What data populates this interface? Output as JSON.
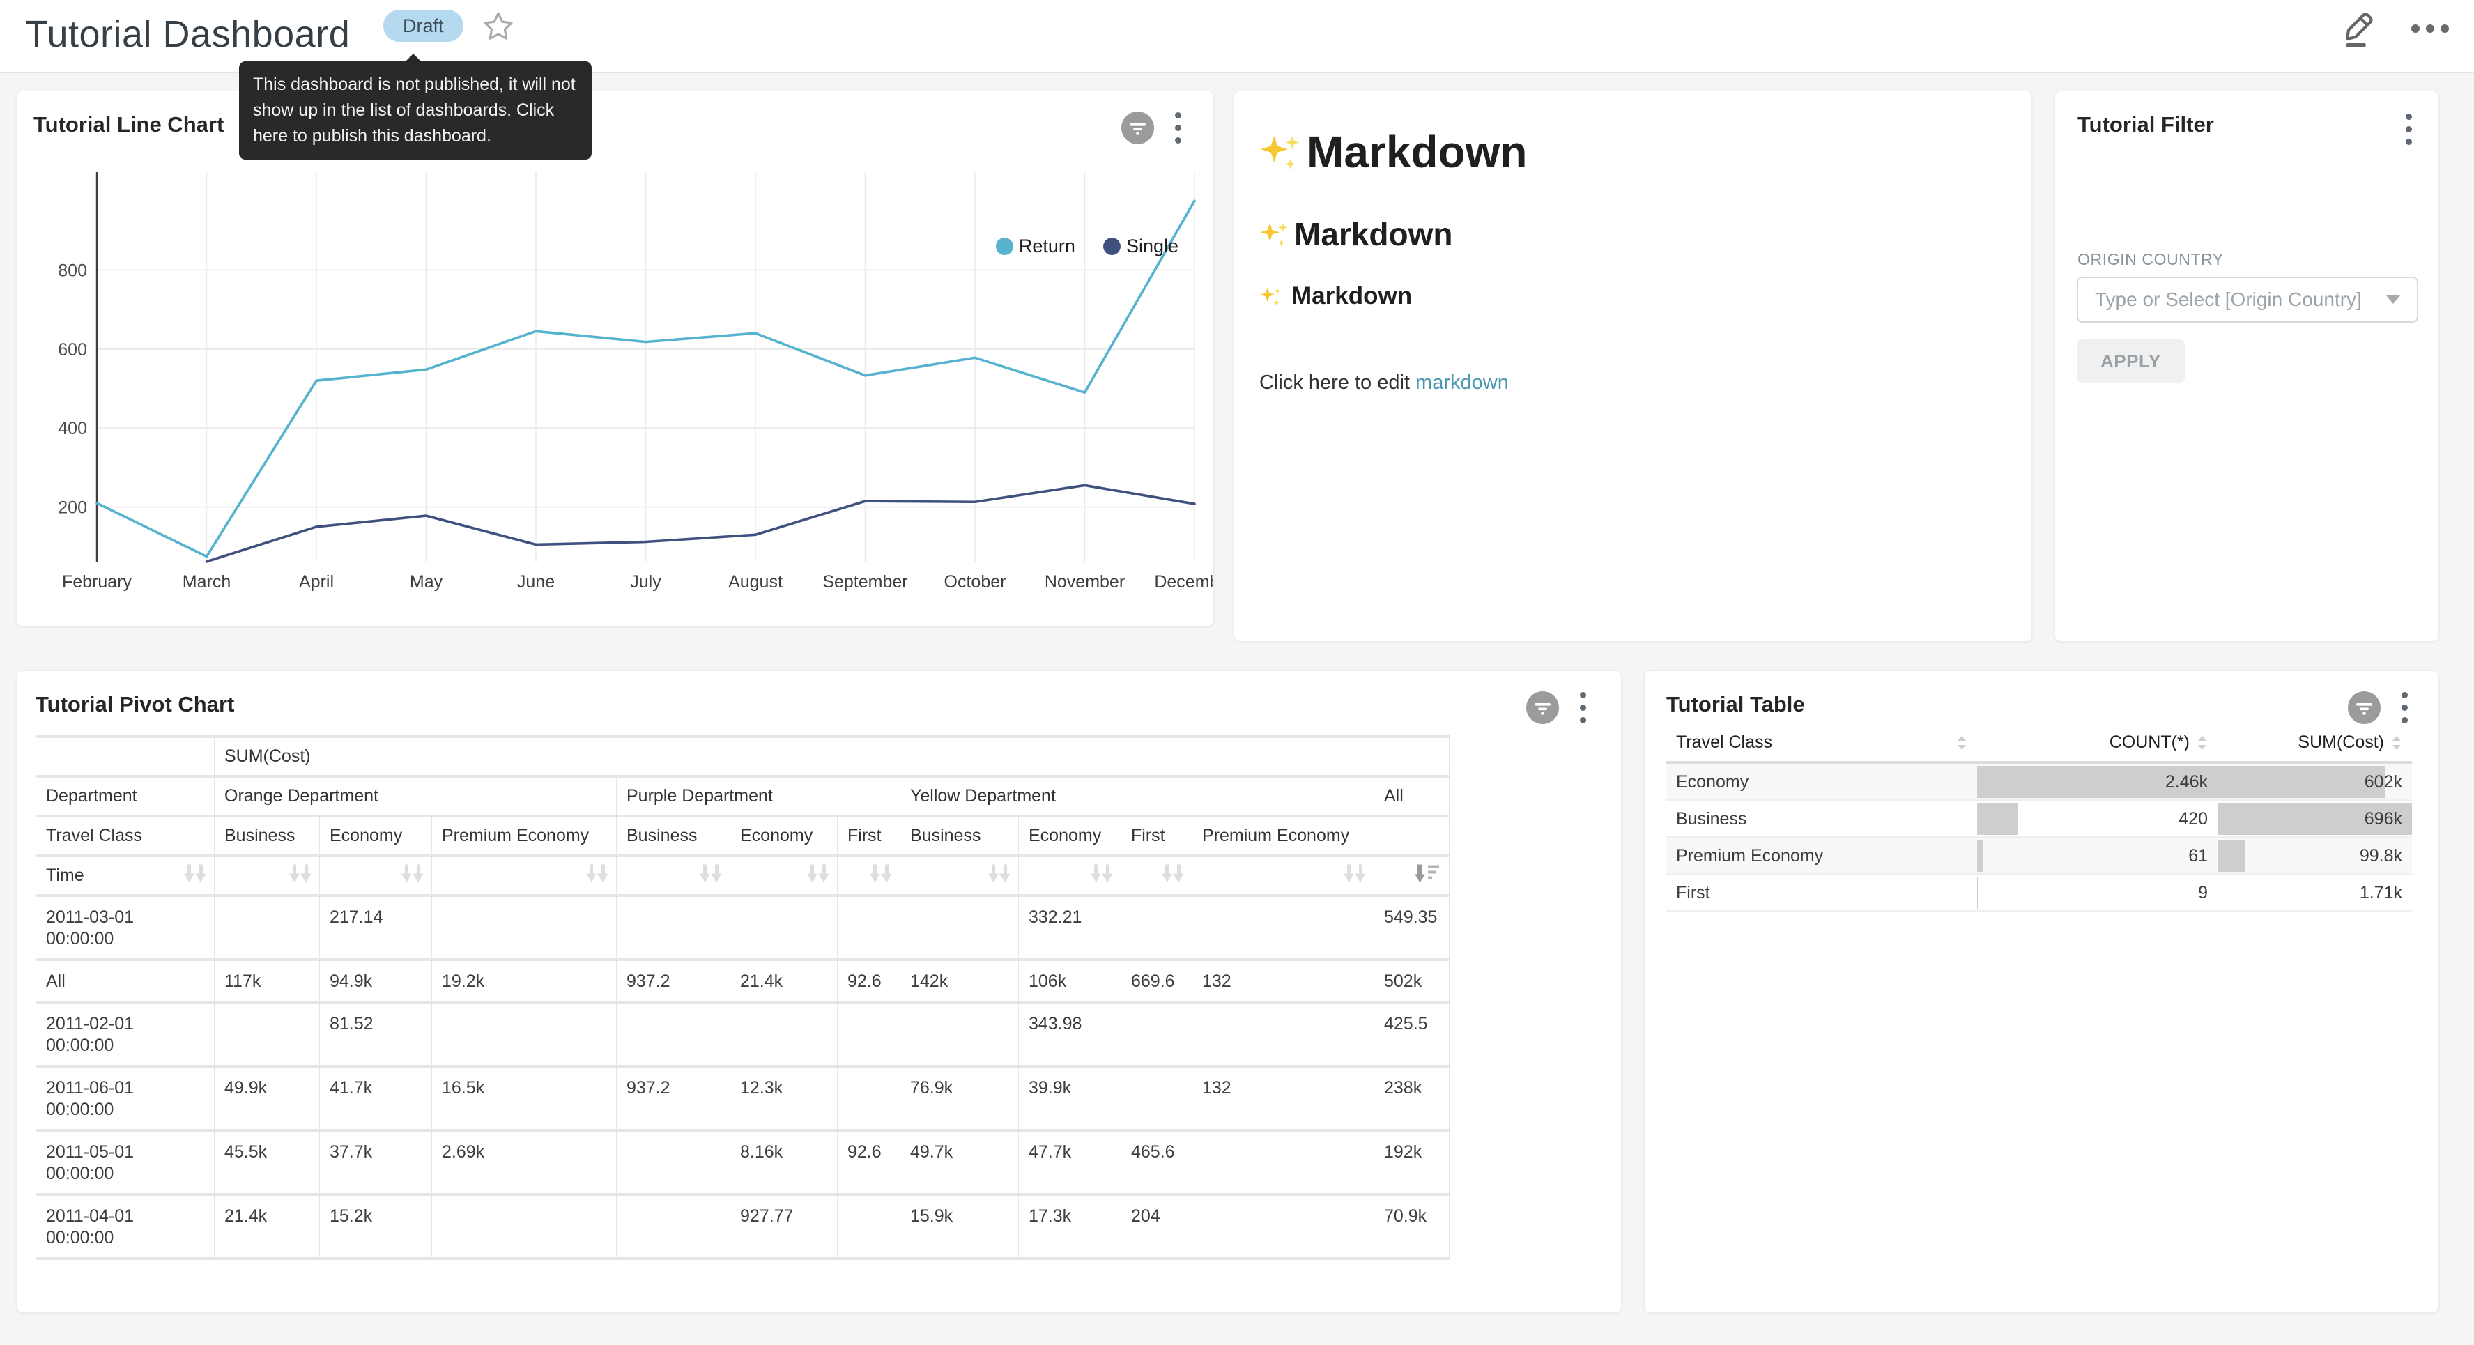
{
  "header": {
    "title": "Tutorial Dashboard",
    "status_badge": "Draft",
    "tooltip": "This dashboard is not published, it will not show up in the list of dashboards. Click here to publish this dashboard."
  },
  "panels": {
    "line_chart": {
      "title": "Tutorial Line Chart"
    },
    "markdown": {
      "title_h1": "Markdown",
      "title_h2": "Markdown",
      "title_h3": "Markdown",
      "icon": "sparkles-icon",
      "paragraph_prefix": "Click here to edit ",
      "link_text": "markdown"
    },
    "filter": {
      "title": "Tutorial Filter",
      "field_label": "ORIGIN COUNTRY",
      "select_placeholder": "Type or Select [Origin Country]",
      "apply_label": "APPLY"
    },
    "pivot": {
      "title": "Tutorial Pivot Chart"
    },
    "table": {
      "title": "Tutorial Table"
    }
  },
  "chart_data": [
    {
      "type": "line",
      "title": "Tutorial Line Chart",
      "x": [
        "February",
        "March",
        "April",
        "May",
        "June",
        "July",
        "August",
        "September",
        "October",
        "November",
        "December"
      ],
      "series": [
        {
          "name": "Return",
          "color": "#56b3cf",
          "values": [
            210,
            75,
            520,
            548,
            645,
            618,
            640,
            533,
            578,
            490,
            975
          ]
        },
        {
          "name": "Single",
          "color": "#41517f",
          "values": [
            null,
            62,
            150,
            178,
            105,
            112,
            130,
            215,
            213,
            255,
            208
          ]
        }
      ],
      "ylim": [
        60,
        1030
      ],
      "yticks": [
        200,
        400,
        600,
        800
      ],
      "grid": true,
      "legend_position": "top-right"
    },
    {
      "type": "table",
      "title": "Tutorial Pivot Chart",
      "metric_header": "SUM(Cost)",
      "row_dim_label": "Time",
      "col_dim_label": "Department",
      "col_subdim_label": "Travel Class",
      "groups": [
        {
          "name": "Orange Department",
          "cols": [
            "Business",
            "Economy",
            "Premium Economy"
          ]
        },
        {
          "name": "Purple Department",
          "cols": [
            "Business",
            "Economy",
            "First"
          ]
        },
        {
          "name": "Yellow Department",
          "cols": [
            "Business",
            "Economy",
            "First",
            "Premium Economy"
          ]
        },
        {
          "name": "All",
          "cols": [
            ""
          ]
        }
      ],
      "rows": [
        {
          "label": "2011-03-01 00:00:00",
          "values": [
            "",
            "217.14",
            "",
            "",
            "",
            "",
            "",
            "332.21",
            "",
            "",
            "549.35"
          ]
        },
        {
          "label": "All",
          "values": [
            "117k",
            "94.9k",
            "19.2k",
            "937.2",
            "21.4k",
            "92.6",
            "142k",
            "106k",
            "669.6",
            "132",
            "502k"
          ]
        },
        {
          "label": "2011-02-01 00:00:00",
          "values": [
            "",
            "81.52",
            "",
            "",
            "",
            "",
            "",
            "343.98",
            "",
            "",
            "425.5"
          ]
        },
        {
          "label": "2011-06-01 00:00:00",
          "values": [
            "49.9k",
            "41.7k",
            "16.5k",
            "937.2",
            "12.3k",
            "",
            "76.9k",
            "39.9k",
            "",
            "132",
            "238k"
          ]
        },
        {
          "label": "2011-05-01 00:00:00",
          "values": [
            "45.5k",
            "37.7k",
            "2.69k",
            "",
            "8.16k",
            "92.6",
            "49.7k",
            "47.7k",
            "465.6",
            "",
            "192k"
          ]
        },
        {
          "label": "2011-04-01 00:00:00",
          "values": [
            "21.4k",
            "15.2k",
            "",
            "",
            "927.77",
            "",
            "15.9k",
            "17.3k",
            "204",
            "",
            "70.9k"
          ]
        }
      ],
      "sorted_column": "All",
      "sort_direction": "desc"
    },
    {
      "type": "table",
      "title": "Tutorial Table",
      "columns": [
        "Travel Class",
        "COUNT(*)",
        "SUM(Cost)"
      ],
      "rows": [
        {
          "travel_class": "Economy",
          "count": 2460,
          "count_display": "2.46k",
          "sum": 602000,
          "sum_display": "602k"
        },
        {
          "travel_class": "Business",
          "count": 420,
          "count_display": "420",
          "sum": 696000,
          "sum_display": "696k"
        },
        {
          "travel_class": "Premium Economy",
          "count": 61,
          "count_display": "61",
          "sum": 99800,
          "sum_display": "99.8k"
        },
        {
          "travel_class": "First",
          "count": 9,
          "count_display": "9",
          "sum": 1710,
          "sum_display": "1.71k"
        }
      ]
    }
  ]
}
